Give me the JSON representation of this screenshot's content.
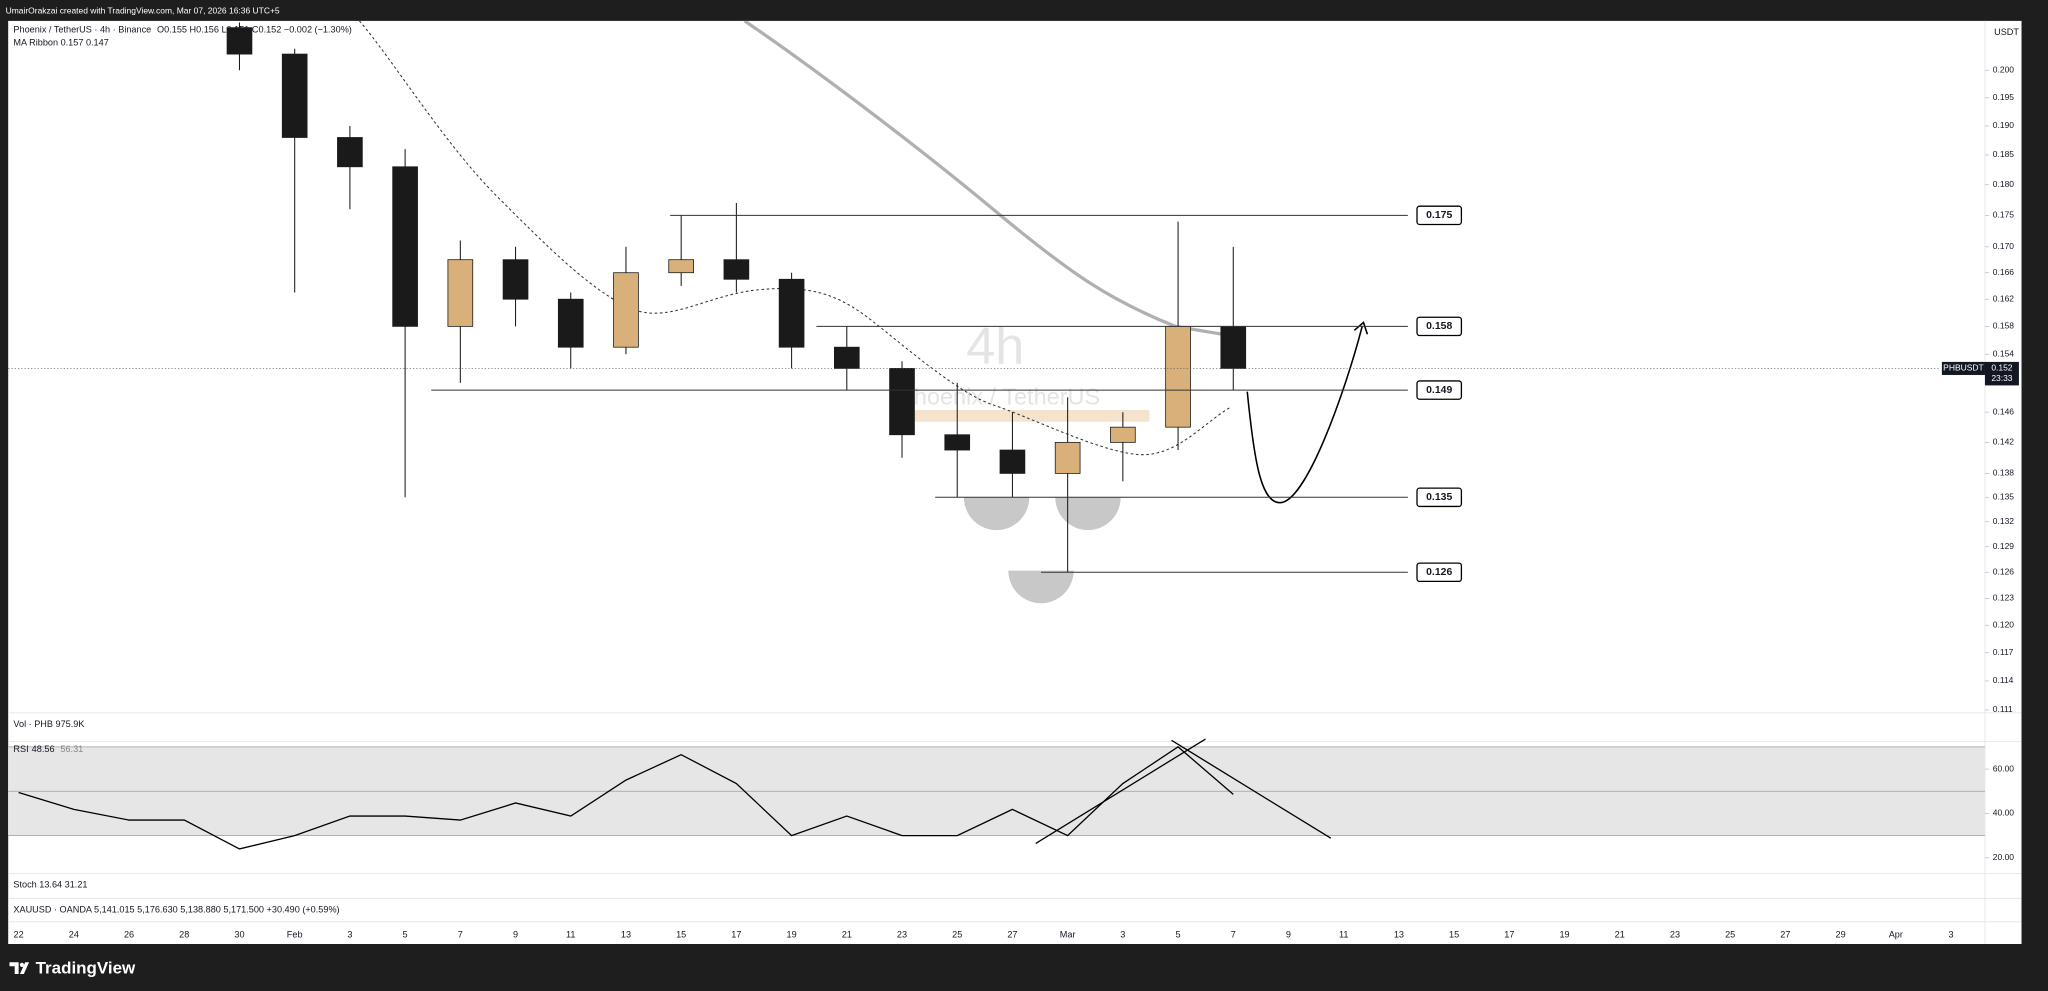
{
  "header": {
    "credit": "UmairOrakzai created with TradingView.com, Mar 07, 2026 16:36 UTC+5"
  },
  "legend": {
    "symbol": "Phoenix / TetherUS · 4h · Binance",
    "ohlc": "O0.155 H0.156 L0.151 C0.152 −0.002 (−1.30%)",
    "ma_ribbon": "MA Ribbon 0.157 0.147",
    "volume": "Vol · PHB 975.9K",
    "stoch": "Stoch 13.64 31.21",
    "xau": "XAUUSD · OANDA 5,141.015 5,176.630 5,138.880 5,171.500 +30.490 (+0.59%)",
    "currency": "USDT"
  },
  "watermark": {
    "interval": "4h",
    "name": "Phoenix / TetherUS"
  },
  "footer": {
    "brand": "TradingView"
  },
  "chart_data": [
    {
      "type": "candlestick",
      "log_scale": true,
      "grid": false,
      "up_color": "#d9b07a",
      "down_color": "#1a1a1a",
      "categories": [
        "22",
        "24",
        "26",
        "28",
        "30",
        "Feb",
        "3",
        "5",
        "7",
        "9",
        "11",
        "13",
        "15",
        "17",
        "19",
        "21",
        "23",
        "25",
        "27",
        "Mar",
        "3",
        "5",
        "7",
        "9",
        "11",
        "13",
        "15",
        "17",
        "19",
        "21",
        "23",
        "25",
        "27",
        "29",
        "Apr",
        "3"
      ],
      "open": [
        null,
        null,
        null,
        null,
        0.208,
        0.203,
        0.188,
        0.183,
        0.158,
        0.168,
        0.162,
        0.155,
        0.166,
        0.168,
        0.165,
        0.155,
        0.152,
        0.143,
        0.141,
        0.138,
        0.142,
        0.144,
        0.158,
        null,
        null,
        null,
        null,
        null,
        null,
        null,
        null,
        null,
        null,
        null,
        null,
        null
      ],
      "high": [
        null,
        null,
        null,
        null,
        0.209,
        0.204,
        0.19,
        0.186,
        0.171,
        0.17,
        0.163,
        0.17,
        0.175,
        0.177,
        0.166,
        0.158,
        0.153,
        0.15,
        0.146,
        0.148,
        0.146,
        0.174,
        0.17,
        null,
        null,
        null,
        null,
        null,
        null,
        null,
        null,
        null,
        null,
        null,
        null,
        null
      ],
      "low": [
        null,
        null,
        null,
        null,
        0.2,
        0.163,
        0.176,
        0.135,
        0.15,
        0.158,
        0.152,
        0.154,
        0.164,
        0.163,
        0.152,
        0.149,
        0.14,
        0.135,
        0.135,
        0.126,
        0.137,
        0.141,
        0.149,
        null,
        null,
        null,
        null,
        null,
        null,
        null,
        null,
        null,
        null,
        null,
        null,
        null
      ],
      "close": [
        null,
        null,
        null,
        null,
        0.203,
        0.188,
        0.183,
        0.158,
        0.168,
        0.162,
        0.155,
        0.166,
        0.168,
        0.165,
        0.155,
        0.152,
        0.143,
        0.141,
        0.138,
        0.142,
        0.144,
        0.158,
        0.152,
        null,
        null,
        null,
        null,
        null,
        null,
        null,
        null,
        null,
        null,
        null,
        null,
        null
      ],
      "ylim": [
        0.1107,
        0.2093
      ],
      "yticks": [
        {
          "value": 0.2,
          "label": "0.200"
        },
        0.195,
        {
          "value": 0.19,
          "label": "0.190"
        },
        0.185,
        {
          "value": 0.18,
          "label": "0.180"
        },
        0.175,
        {
          "value": 0.17,
          "label": "0.170"
        },
        0.166,
        0.162,
        0.158,
        0.154,
        0.146,
        0.142,
        0.138,
        0.135,
        0.132,
        0.129,
        0.126,
        0.123,
        {
          "value": 0.12,
          "label": "0.120"
        },
        0.117,
        0.114,
        0.111
      ],
      "levels": [
        0.175,
        0.158,
        0.149,
        0.135,
        0.126
      ],
      "last_price": 0.152,
      "symbol_tag": "PHBUSDT",
      "countdown": "23:33"
    },
    {
      "type": "line",
      "title": "RSI",
      "legend_values": [
        48.56,
        56.31
      ],
      "color": "#000000",
      "values": [
        49.4,
        41.8,
        37,
        37,
        24,
        30,
        38.8,
        38.8,
        37,
        44.7,
        38.8,
        55,
        66.5,
        53.5,
        30,
        38.8,
        30,
        30,
        41.8,
        30,
        53.5,
        70,
        48.6,
        null,
        null,
        null,
        null,
        null,
        null,
        null,
        null,
        null,
        null,
        null,
        null,
        null
      ],
      "ylim": [
        13.5,
        71.2
      ],
      "yticks": [
        {
          "value": 60,
          "label": "60.00"
        },
        {
          "value": 40,
          "label": "40.00"
        },
        {
          "value": 20,
          "label": "20.00"
        }
      ]
    }
  ]
}
